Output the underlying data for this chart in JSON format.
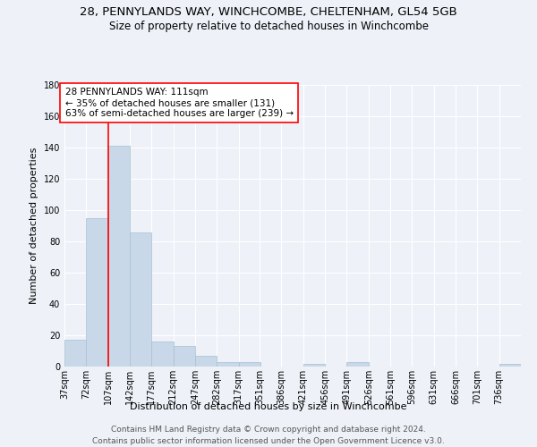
{
  "title_line1": "28, PENNYLANDS WAY, WINCHCOMBE, CHELTENHAM, GL54 5GB",
  "title_line2": "Size of property relative to detached houses in Winchcombe",
  "xlabel": "Distribution of detached houses by size in Winchcombe",
  "ylabel": "Number of detached properties",
  "bar_color": "#c8d8e8",
  "bar_edgecolor": "#a8c0d0",
  "background_color": "#eef2f8",
  "grid_color": "white",
  "annotation_box_text": "28 PENNYLANDS WAY: 111sqm\n← 35% of detached houses are smaller (131)\n63% of semi-detached houses are larger (239) →",
  "redline_x": 107,
  "categories": [
    "37sqm",
    "72sqm",
    "107sqm",
    "142sqm",
    "177sqm",
    "212sqm",
    "247sqm",
    "282sqm",
    "317sqm",
    "351sqm",
    "386sqm",
    "421sqm",
    "456sqm",
    "491sqm",
    "526sqm",
    "561sqm",
    "596sqm",
    "631sqm",
    "666sqm",
    "701sqm",
    "736sqm"
  ],
  "bin_edges": [
    37,
    72,
    107,
    142,
    177,
    212,
    247,
    282,
    317,
    351,
    386,
    421,
    456,
    491,
    526,
    561,
    596,
    631,
    666,
    701,
    736
  ],
  "bin_width": 35,
  "values": [
    17,
    95,
    141,
    86,
    16,
    13,
    7,
    3,
    3,
    0,
    0,
    2,
    0,
    3,
    0,
    0,
    0,
    0,
    0,
    0,
    2
  ],
  "ylim": [
    0,
    180
  ],
  "yticks": [
    0,
    20,
    40,
    60,
    80,
    100,
    120,
    140,
    160,
    180
  ],
  "footer_line1": "Contains HM Land Registry data © Crown copyright and database right 2024.",
  "footer_line2": "Contains public sector information licensed under the Open Government Licence v3.0.",
  "title_fontsize": 9.5,
  "subtitle_fontsize": 8.5,
  "axis_label_fontsize": 8,
  "tick_fontsize": 7,
  "annotation_fontsize": 7.5,
  "footer_fontsize": 6.5
}
